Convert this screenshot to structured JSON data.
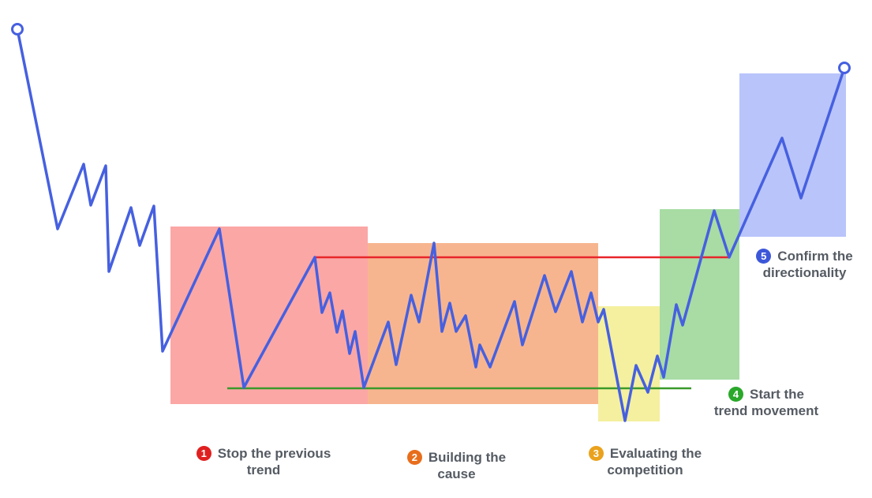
{
  "phases": [
    {
      "number": "1",
      "line1": "Stop the previous",
      "line2": "trend",
      "color": "#e02020",
      "fill": "#fba7a6"
    },
    {
      "number": "2",
      "line1": "Building the",
      "line2": "cause",
      "color": "#e86e1c",
      "fill": "#f7b58f"
    },
    {
      "number": "3",
      "line1": "Evaluating the",
      "line2": "competition",
      "color": "#eaa21d",
      "fill": "#f4f09f"
    },
    {
      "number": "4",
      "line1": "Start the",
      "line2": "trend movement",
      "color": "#2aa82a",
      "fill": "#a8dca4"
    },
    {
      "number": "5",
      "line1": "Confirm the",
      "line2": "directionality",
      "color": "#3d57d9",
      "fill": "#b9c4fa"
    }
  ],
  "colors": {
    "price_line": "#4660e0",
    "resistance_line": "#e8262a",
    "support_line": "#3a9a2a"
  }
}
